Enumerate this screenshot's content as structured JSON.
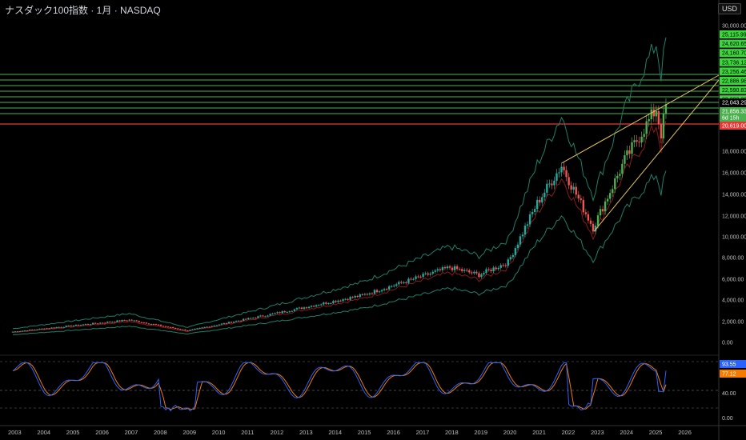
{
  "header": {
    "title": "ナスダック100指数 · 1月 · NASDAQ",
    "currency": "USD"
  },
  "colors": {
    "up": "#26a69a",
    "up_bright": "#4caf50",
    "down": "#ef5350",
    "level_green": "#4caf50",
    "level_red": "#e53935",
    "trendline": "#e6c35c",
    "bb_outer": "#1e7f6a",
    "ma_red": "#8b1a1a",
    "stoch_k": "#2962ff",
    "stoch_d": "#f57c00"
  },
  "price_axis": {
    "ticks": [
      "30,000.00",
      "18,000.00",
      "16,000.00",
      "14,000.00",
      "12,000.00",
      "10,000.00",
      "8,000.00",
      "6,000.00",
      "4,000.00",
      "2,000.00",
      "0.00"
    ],
    "green_tags": [
      "25,115.99",
      "24,620.65",
      "24,160.70",
      "23,736.12",
      "23,256.46",
      "22,886.98",
      "22,590.83",
      "22,282.29"
    ],
    "current_price": "22,043.29",
    "last_close": "21,856.33",
    "countdown": "6d 15h",
    "red_level": "20,619.00"
  },
  "osc_axis": {
    "ticks": [
      "40.00",
      "0.00"
    ],
    "k_value": "93.55",
    "d_value": "77.12"
  },
  "time_axis": {
    "years": [
      "2003",
      "2004",
      "2005",
      "2006",
      "2007",
      "2008",
      "2009",
      "2010",
      "2011",
      "2012",
      "2013",
      "2014",
      "2015",
      "2016",
      "2017",
      "2018",
      "2019",
      "2020",
      "2021",
      "2022",
      "2023",
      "2024",
      "2025",
      "2026"
    ]
  },
  "chart_data": {
    "type": "candlestick",
    "symbol": "ナスダック100指数",
    "interval": "1月",
    "exchange": "NASDAQ",
    "ylim": [
      0,
      22500
    ],
    "horizontal_levels_green": [
      25115.99,
      24620.65,
      24160.7,
      23736.12,
      23256.46,
      22886.98,
      22590.83,
      22282.29
    ],
    "horizontal_level_red": 20619.0,
    "key_points": [
      {
        "x": "2003",
        "y": 1000
      },
      {
        "x": "2007",
        "y": 2100
      },
      {
        "x": "2009",
        "y": 1100
      },
      {
        "x": "2012",
        "y": 2700
      },
      {
        "x": "2015",
        "y": 4400
      },
      {
        "x": "2018",
        "y": 7000
      },
      {
        "x": "2019",
        "y": 6300
      },
      {
        "x": "2020",
        "y": 7500
      },
      {
        "x": "2021",
        "y": 13000
      },
      {
        "x": "2021-11",
        "y": 16500
      },
      {
        "x": "2022-12",
        "y": 10700
      },
      {
        "x": "2024",
        "y": 17000
      },
      {
        "x": "2025-02",
        "y": 21800
      },
      {
        "x": "2025-04",
        "y": 19500
      },
      {
        "x": "2025-06",
        "y": 22043
      }
    ]
  }
}
